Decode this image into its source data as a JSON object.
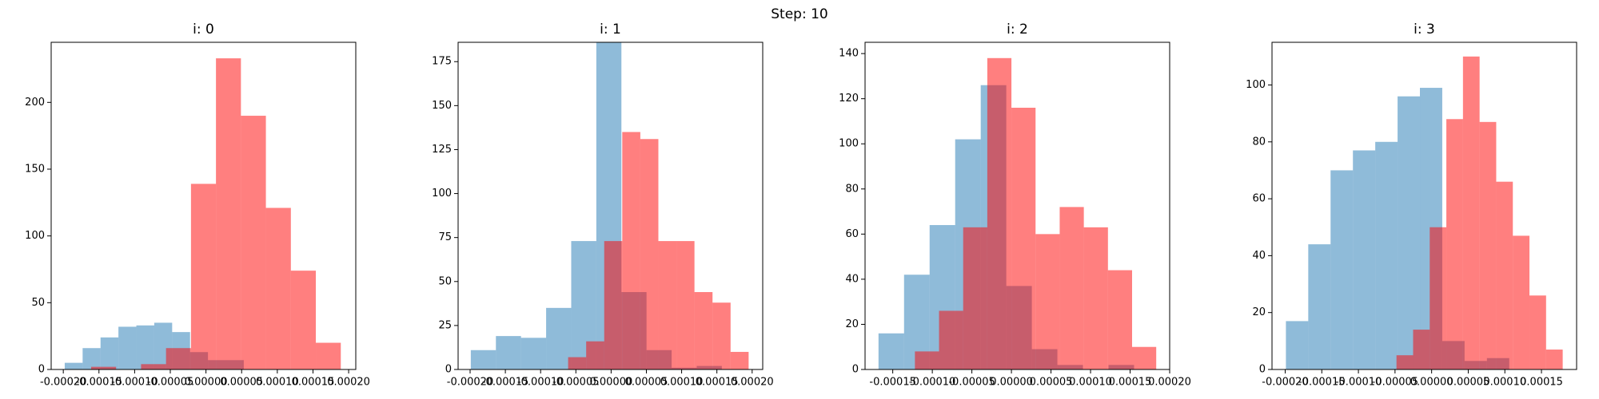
{
  "suptitle": "Step: 10",
  "chart_data": [
    {
      "type": "histogram",
      "title": "i: 0",
      "xlim": [
        -0.000217,
        0.00021
      ],
      "xticks": [
        {
          "value": -0.0002,
          "label": "-0.00020"
        },
        {
          "value": -0.00015,
          "label": "-0.00015"
        },
        {
          "value": -0.0001,
          "label": "-0.00010"
        },
        {
          "value": -5e-05,
          "label": "-0.00005"
        },
        {
          "value": 0,
          "label": "0.00000"
        },
        {
          "value": 5e-05,
          "label": "0.00005"
        },
        {
          "value": 0.0001,
          "label": "0.00010"
        },
        {
          "value": 0.00015,
          "label": "0.00015"
        },
        {
          "value": 0.0002,
          "label": "0.00020"
        }
      ],
      "ylim": [
        0,
        245
      ],
      "yticks": [
        0,
        50,
        100,
        150,
        200
      ],
      "series": [
        {
          "color": "#1f77b4",
          "alpha": 0.5,
          "bins": [
            -0.000198,
            -0.0001729,
            -0.0001478,
            -0.0001227,
            -9.76e-05,
            -7.25e-05,
            -4.74e-05,
            -2.23e-05,
            2.8e-06,
            2.79e-05,
            5.3e-05
          ],
          "values": [
            5,
            16,
            24,
            32,
            33,
            35,
            28,
            13,
            7,
            7
          ]
        },
        {
          "color": "#ff0000",
          "alpha": 0.5,
          "bins": [
            -0.000161,
            -0.000126,
            -9.1e-05,
            -5.6e-05,
            -2.1e-05,
            1.4e-05,
            4.9e-05,
            8.4e-05,
            0.000119,
            0.000154,
            0.000189
          ],
          "values": [
            2,
            0,
            4,
            16,
            139,
            233,
            190,
            121,
            74,
            20
          ]
        }
      ]
    },
    {
      "type": "histogram",
      "title": "i: 1",
      "xlim": [
        -0.000217,
        0.000215
      ],
      "xticks": [
        {
          "value": -0.0002,
          "label": "-0.00020"
        },
        {
          "value": -0.00015,
          "label": "-0.00015"
        },
        {
          "value": -0.0001,
          "label": "-0.00010"
        },
        {
          "value": -5e-05,
          "label": "-0.00005"
        },
        {
          "value": 0,
          "label": "0.00000"
        },
        {
          "value": 5e-05,
          "label": "0.00005"
        },
        {
          "value": 0.0001,
          "label": "0.00010"
        },
        {
          "value": 0.00015,
          "label": "0.00015"
        },
        {
          "value": 0.0002,
          "label": "0.00020"
        }
      ],
      "ylim": [
        0,
        186
      ],
      "yticks": [
        0,
        25,
        50,
        75,
        100,
        125,
        150,
        175
      ],
      "series": [
        {
          "color": "#1f77b4",
          "alpha": 0.5,
          "bins": [
            -0.000199,
            -0.0001634,
            -0.0001278,
            -9.22e-05,
            -5.66e-05,
            -2.1e-05,
            1.46e-05,
            5.02e-05,
            8.58e-05,
            0.0001214,
            0.000157
          ],
          "values": [
            11,
            19,
            18,
            35,
            73,
            186,
            44,
            11,
            1,
            2
          ]
        },
        {
          "color": "#ff0000",
          "alpha": 0.5,
          "bins": [
            -6.1e-05,
            -3.54e-05,
            -9.8e-06,
            1.58e-05,
            4.14e-05,
            6.7e-05,
            9.26e-05,
            0.0001182,
            0.0001438,
            0.0001694,
            0.000195
          ],
          "values": [
            7,
            16,
            73,
            135,
            131,
            73,
            73,
            44,
            38,
            10
          ]
        }
      ]
    },
    {
      "type": "histogram",
      "title": "i: 2",
      "xlim": [
        -0.000185,
        0.0002
      ],
      "xticks": [
        {
          "value": -0.00015,
          "label": "-0.00015"
        },
        {
          "value": -0.0001,
          "label": "-0.00010"
        },
        {
          "value": -5e-05,
          "label": "-0.00005"
        },
        {
          "value": 0,
          "label": "0.00000"
        },
        {
          "value": 5e-05,
          "label": "0.00005"
        },
        {
          "value": 0.0001,
          "label": "0.00010"
        },
        {
          "value": 0.00015,
          "label": "0.00015"
        },
        {
          "value": 0.0002,
          "label": "0.00020"
        }
      ],
      "ylim": [
        0,
        145
      ],
      "yticks": [
        0,
        20,
        40,
        60,
        80,
        100,
        120,
        140
      ],
      "series": [
        {
          "color": "#1f77b4",
          "alpha": 0.5,
          "bins": [
            -0.000168,
            -0.0001357,
            -0.0001034,
            -7.11e-05,
            -3.88e-05,
            -6.5e-06,
            2.58e-05,
            5.81e-05,
            9.04e-05,
            0.0001227,
            0.000155
          ],
          "values": [
            16,
            42,
            64,
            102,
            126,
            37,
            9,
            2,
            0,
            2
          ]
        },
        {
          "color": "#ff0000",
          "alpha": 0.5,
          "bins": [
            -0.000122,
            -9.15e-05,
            -6.1e-05,
            -3.05e-05,
            0,
            3.05e-05,
            6.1e-05,
            9.15e-05,
            0.000122,
            0.0001525,
            0.000183
          ],
          "values": [
            8,
            26,
            63,
            138,
            116,
            60,
            72,
            63,
            44,
            10
          ]
        }
      ]
    },
    {
      "type": "histogram",
      "title": "i: 3",
      "xlim": [
        -0.000218,
        0.000198
      ],
      "xticks": [
        {
          "value": -0.0002,
          "label": "-0.00020"
        },
        {
          "value": -0.00015,
          "label": "-0.00015"
        },
        {
          "value": -0.0001,
          "label": "-0.00010"
        },
        {
          "value": -5e-05,
          "label": "-0.00005"
        },
        {
          "value": 0,
          "label": "0.00000"
        },
        {
          "value": 5e-05,
          "label": "0.00005"
        },
        {
          "value": 0.0001,
          "label": "0.00010"
        },
        {
          "value": 0.00015,
          "label": "0.00015"
        }
      ],
      "ylim": [
        0,
        115
      ],
      "yticks": [
        0,
        20,
        40,
        60,
        80,
        100
      ],
      "series": [
        {
          "color": "#1f77b4",
          "alpha": 0.5,
          "bins": [
            -0.000199,
            -0.0001685,
            -0.000138,
            -0.0001075,
            -7.7e-05,
            -4.65e-05,
            -1.6e-05,
            1.45e-05,
            4.5e-05,
            7.55e-05,
            0.000106
          ],
          "values": [
            17,
            44,
            70,
            77,
            80,
            96,
            99,
            10,
            3,
            4
          ]
        },
        {
          "color": "#ff0000",
          "alpha": 0.5,
          "bins": [
            -4.8e-05,
            -2.53e-05,
            -2.6e-06,
            2.01e-05,
            4.28e-05,
            6.55e-05,
            8.82e-05,
            0.0001109,
            0.0001336,
            0.0001563,
            0.000179
          ],
          "values": [
            5,
            14,
            50,
            88,
            110,
            87,
            66,
            47,
            26,
            7
          ]
        }
      ]
    }
  ]
}
